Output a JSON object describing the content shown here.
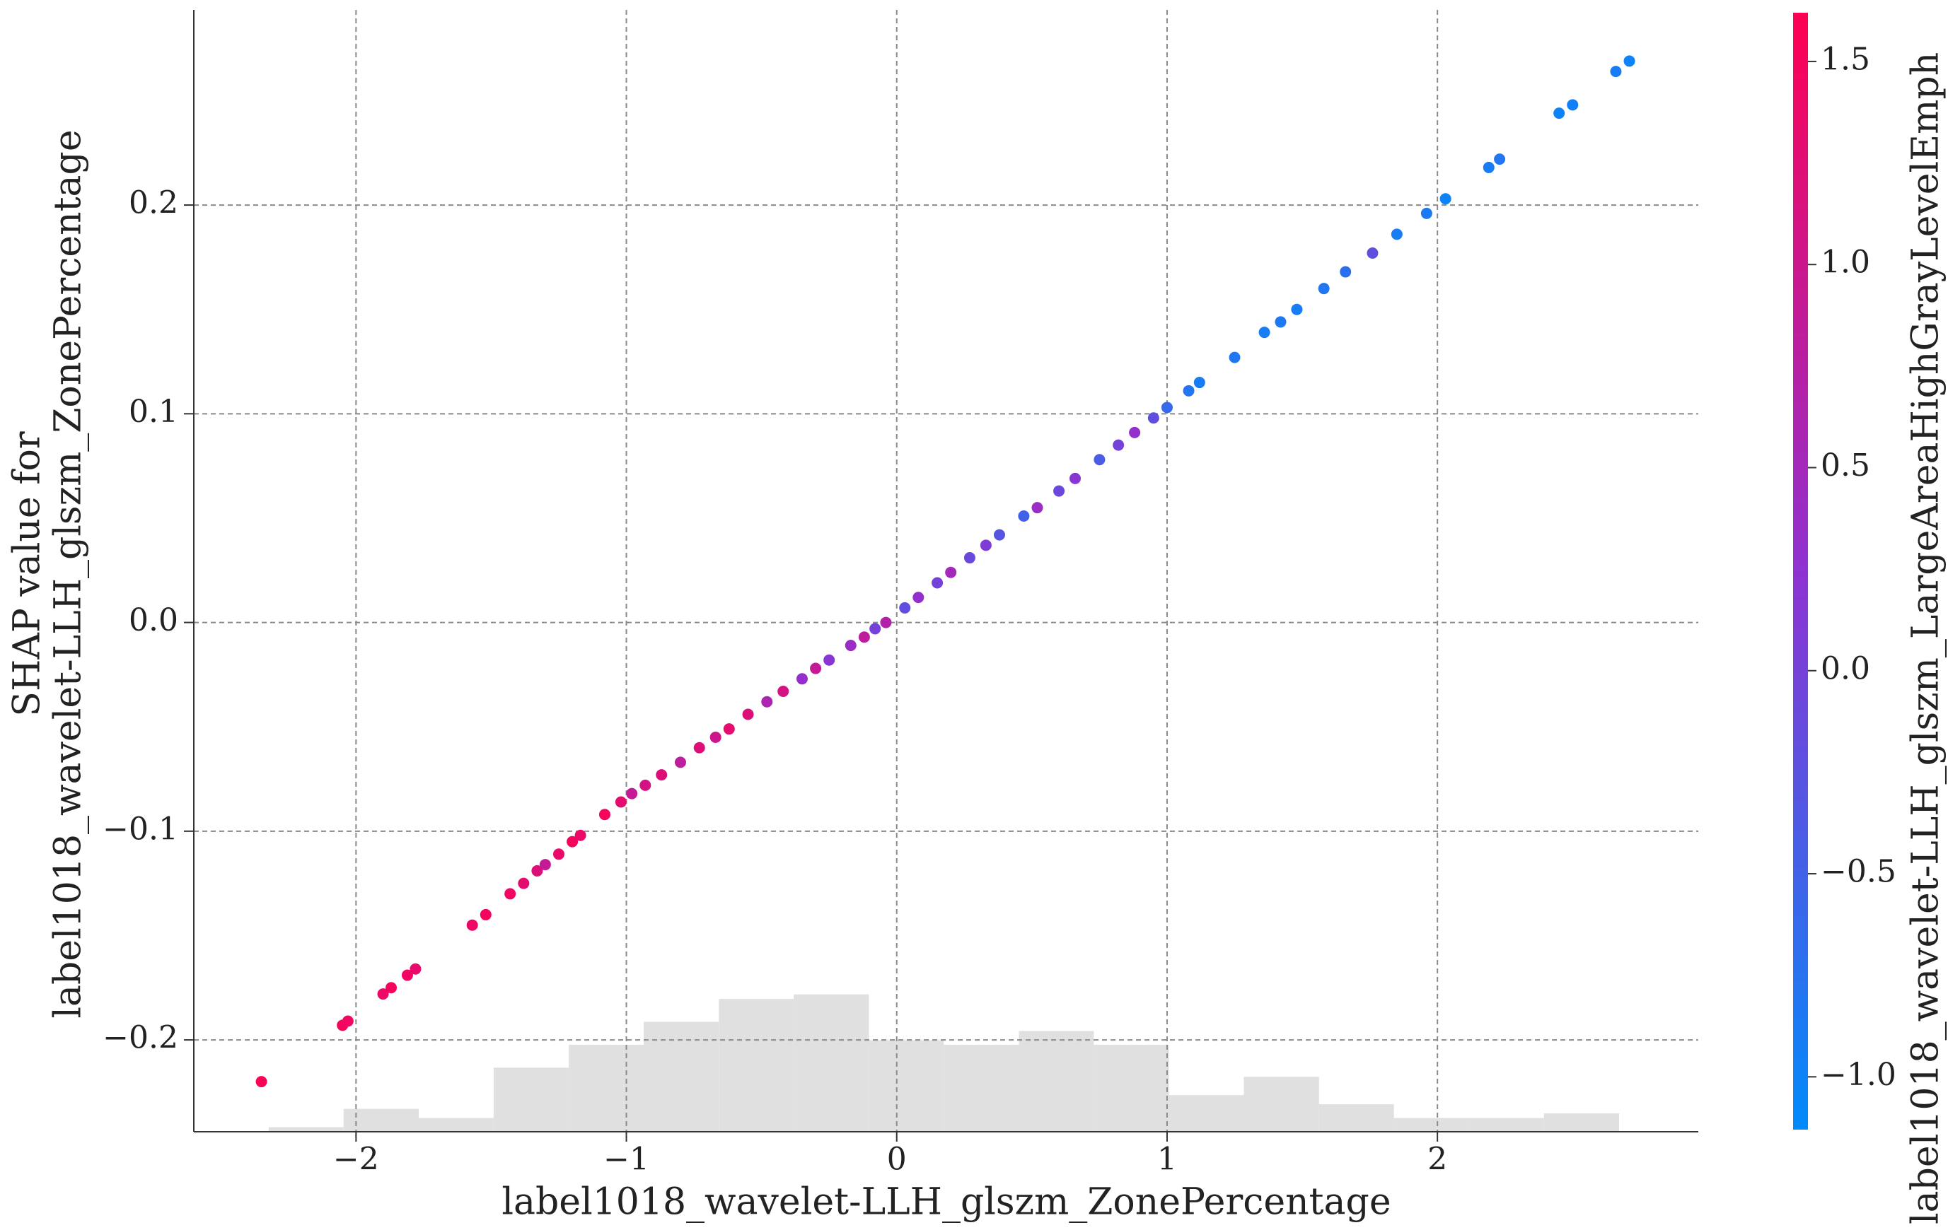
{
  "chart_data": {
    "type": "scatter",
    "x_label": "label1018_wavelet-LLH_glszm_ZonePercentage",
    "y_label": [
      "SHAP value for",
      "label1018_wavelet-LLH_glszm_ZonePercentage"
    ],
    "colorbar_label": "label1018_wavelet-LLH_glszm_LargeAreaHighGrayLevelEmph",
    "x": [
      -2.35,
      -2.05,
      -2.03,
      -1.9,
      -1.87,
      -1.81,
      -1.78,
      -1.57,
      -1.52,
      -1.43,
      -1.38,
      -1.33,
      -1.3,
      -1.25,
      -1.2,
      -1.17,
      -1.08,
      -1.02,
      -0.98,
      -0.93,
      -0.87,
      -0.8,
      -0.73,
      -0.67,
      -0.62,
      -0.55,
      -0.48,
      -0.42,
      -0.35,
      -0.3,
      -0.25,
      -0.17,
      -0.12,
      -0.08,
      -0.04,
      0.03,
      0.08,
      0.15,
      0.2,
      0.27,
      0.33,
      0.38,
      0.47,
      0.52,
      0.6,
      0.66,
      0.75,
      0.82,
      0.88,
      0.95,
      1.0,
      1.08,
      1.12,
      1.25,
      1.36,
      1.42,
      1.48,
      1.58,
      1.66,
      1.76,
      1.85,
      1.96,
      2.03,
      2.19,
      2.23,
      2.45,
      2.5,
      2.66,
      2.71
    ],
    "values": [
      -0.22,
      -0.193,
      -0.191,
      -0.178,
      -0.175,
      -0.169,
      -0.166,
      -0.145,
      -0.14,
      -0.13,
      -0.125,
      -0.119,
      -0.116,
      -0.111,
      -0.105,
      -0.102,
      -0.092,
      -0.086,
      -0.082,
      -0.078,
      -0.073,
      -0.067,
      -0.06,
      -0.055,
      -0.051,
      -0.044,
      -0.038,
      -0.033,
      -0.027,
      -0.022,
      -0.018,
      -0.011,
      -0.007,
      -0.003,
      0.0,
      0.007,
      0.012,
      0.019,
      0.024,
      0.031,
      0.037,
      0.042,
      0.051,
      0.055,
      0.063,
      0.069,
      0.078,
      0.085,
      0.091,
      0.098,
      0.103,
      0.111,
      0.115,
      0.127,
      0.139,
      0.144,
      0.15,
      0.16,
      0.168,
      0.177,
      0.186,
      0.196,
      0.203,
      0.218,
      0.222,
      0.244,
      0.248,
      0.264,
      0.269
    ],
    "color_values": [
      1.55,
      1.5,
      1.45,
      1.4,
      1.5,
      1.45,
      1.35,
      1.4,
      1.5,
      1.45,
      1.3,
      1.2,
      0.9,
      1.35,
      1.5,
      1.4,
      1.5,
      1.3,
      0.9,
      1.1,
      1.2,
      0.8,
      1.2,
      1.0,
      1.3,
      1.2,
      0.6,
      1.1,
      0.3,
      0.9,
      0.2,
      0.4,
      0.8,
      0.0,
      0.7,
      -0.2,
      0.3,
      0.0,
      0.5,
      -0.1,
      0.1,
      -0.3,
      -0.5,
      0.4,
      -0.1,
      0.2,
      -0.4,
      0.0,
      0.3,
      -0.2,
      -0.6,
      -0.8,
      -0.9,
      -0.8,
      -0.9,
      -0.85,
      -0.9,
      -0.8,
      -0.7,
      -0.2,
      -0.9,
      -0.85,
      -1.0,
      -0.9,
      -0.8,
      -1.0,
      -0.95,
      -0.9,
      -1.0
    ],
    "xlim": [
      -2.6,
      2.965
    ],
    "ylim": [
      -0.244,
      0.2935
    ],
    "xticks": [
      {
        "value": -2,
        "label": "−2"
      },
      {
        "value": -1,
        "label": "−1"
      },
      {
        "value": 0,
        "label": "0"
      },
      1,
      2
    ],
    "yticks": [
      {
        "value": -0.2,
        "label": "−0.2"
      },
      {
        "value": -0.1,
        "label": "−0.1"
      },
      {
        "value": 0,
        "label": "0.0"
      },
      0.1,
      0.2
    ],
    "grid": true,
    "colormap": [
      "#008bfb",
      "#8e32d2",
      "#ff0052"
    ],
    "clim": [
      -1.13,
      1.62
    ],
    "cticks": [
      {
        "value": -1,
        "label": "−1.0"
      },
      {
        "value": -0.5,
        "label": "−0.5"
      },
      {
        "value": 0,
        "label": "0.0"
      },
      0.5,
      {
        "value": 1,
        "label": "1.0"
      },
      1.5
    ],
    "histogram": {
      "bins": [
        -2.323,
        -2.046,
        -1.768,
        -1.491,
        -1.213,
        -0.936,
        -0.658,
        -0.381,
        -0.103,
        0.174,
        0.452,
        0.729,
        1.007,
        1.284,
        1.562,
        1.839,
        2.117,
        2.394,
        2.672
      ],
      "counts": [
        1,
        5,
        3,
        14,
        19,
        24,
        29,
        30,
        20,
        19,
        22,
        19,
        8,
        12,
        6,
        3,
        3,
        4
      ],
      "color": "#e0e0e0",
      "ylim": [
        0,
        245
      ]
    }
  }
}
